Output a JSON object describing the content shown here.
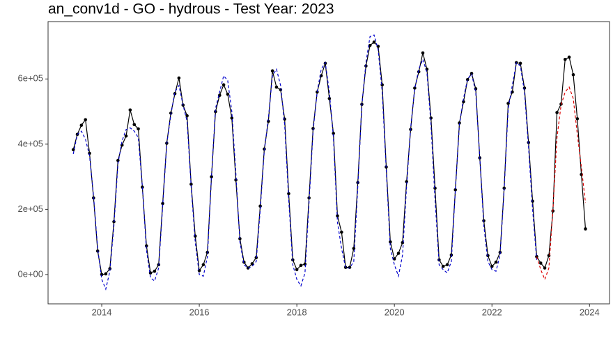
{
  "chart_data": {
    "type": "line",
    "title": "an_conv1d - GO - hydrous - Test Year: 2023",
    "x": [
      2013.417,
      2013.5,
      2013.583,
      2013.667,
      2013.75,
      2013.833,
      2013.917,
      2014,
      2014.083,
      2014.167,
      2014.25,
      2014.333,
      2014.417,
      2014.5,
      2014.583,
      2014.667,
      2014.75,
      2014.833,
      2014.917,
      2015,
      2015.083,
      2015.167,
      2015.25,
      2015.333,
      2015.417,
      2015.5,
      2015.583,
      2015.667,
      2015.75,
      2015.833,
      2015.917,
      2016,
      2016.083,
      2016.167,
      2016.25,
      2016.333,
      2016.417,
      2016.5,
      2016.583,
      2016.667,
      2016.75,
      2016.833,
      2016.917,
      2017,
      2017.083,
      2017.167,
      2017.25,
      2017.333,
      2017.417,
      2017.5,
      2017.583,
      2017.667,
      2017.75,
      2017.833,
      2017.917,
      2018,
      2018.083,
      2018.167,
      2018.25,
      2018.333,
      2018.417,
      2018.5,
      2018.583,
      2018.667,
      2018.75,
      2018.833,
      2018.917,
      2019,
      2019.083,
      2019.167,
      2019.25,
      2019.333,
      2019.417,
      2019.5,
      2019.583,
      2019.667,
      2019.75,
      2019.833,
      2019.917,
      2020,
      2020.083,
      2020.167,
      2020.25,
      2020.333,
      2020.417,
      2020.5,
      2020.583,
      2020.667,
      2020.75,
      2020.833,
      2020.917,
      2021,
      2021.083,
      2021.167,
      2021.25,
      2021.333,
      2021.417,
      2021.5,
      2021.583,
      2021.667,
      2021.75,
      2021.833,
      2021.917,
      2022,
      2022.083,
      2022.167,
      2022.25,
      2022.333,
      2022.417,
      2022.5,
      2022.583,
      2022.667,
      2022.75,
      2022.833,
      2022.917,
      2023,
      2023.083,
      2023.167,
      2023.25,
      2023.333,
      2023.417,
      2023.5,
      2023.583,
      2023.667,
      2023.75,
      2023.833,
      2023.917
    ],
    "series": [
      {
        "color": "#000000",
        "linestyle": "solid",
        "markers": true,
        "values": [
          383000,
          430000,
          458000,
          475000,
          372000,
          235000,
          72000,
          0,
          2000,
          18000,
          162000,
          350000,
          397000,
          425000,
          505000,
          460000,
          447000,
          268000,
          88000,
          5000,
          10000,
          30000,
          218000,
          403000,
          495000,
          555000,
          603000,
          520000,
          487000,
          277000,
          118000,
          12000,
          30000,
          68000,
          300000,
          500000,
          550000,
          582000,
          553000,
          480000,
          290000,
          110000,
          38000,
          20000,
          33000,
          52000,
          210000,
          385000,
          470000,
          625000,
          575000,
          567000,
          477000,
          248000,
          45000,
          15000,
          28000,
          32000,
          235000,
          448000,
          560000,
          610000,
          648000,
          540000,
          433000,
          180000,
          130000,
          22000,
          22000,
          80000,
          282000,
          522000,
          640000,
          703000,
          713000,
          700000,
          582000,
          330000,
          100000,
          48000,
          65000,
          98000,
          285000,
          445000,
          572000,
          622000,
          680000,
          630000,
          480000,
          265000,
          45000,
          25000,
          30000,
          60000,
          260000,
          465000,
          530000,
          598000,
          617000,
          570000,
          358000,
          165000,
          58000,
          25000,
          38000,
          68000,
          265000,
          525000,
          560000,
          650000,
          648000,
          572000,
          405000,
          225000,
          55000,
          35000,
          20000,
          58000,
          195000,
          497000,
          523000,
          660000,
          667000,
          613000,
          478000,
          307000,
          140000
        ]
      },
      {
        "color": "#0000cc",
        "linestyle": "dashed",
        "markers": false,
        "values": [
          370000,
          430000,
          440000,
          415000,
          365000,
          240000,
          80000,
          -15000,
          -45000,
          10000,
          150000,
          340000,
          410000,
          445000,
          450000,
          440000,
          420000,
          270000,
          75000,
          -10000,
          -20000,
          20000,
          210000,
          400000,
          490000,
          560000,
          580000,
          520000,
          470000,
          270000,
          100000,
          0,
          -5000,
          55000,
          300000,
          510000,
          560000,
          610000,
          595000,
          500000,
          310000,
          100000,
          30000,
          20000,
          25000,
          40000,
          200000,
          380000,
          480000,
          610000,
          630000,
          580000,
          460000,
          230000,
          30000,
          -15000,
          -35000,
          5000,
          220000,
          440000,
          560000,
          630000,
          650000,
          560000,
          420000,
          160000,
          80000,
          20000,
          20000,
          40000,
          270000,
          520000,
          650000,
          730000,
          735000,
          690000,
          560000,
          320000,
          80000,
          30000,
          -5000,
          60000,
          270000,
          450000,
          570000,
          630000,
          660000,
          620000,
          460000,
          230000,
          30000,
          15000,
          5000,
          40000,
          260000,
          460000,
          540000,
          600000,
          615000,
          560000,
          360000,
          150000,
          40000,
          15000,
          10000,
          60000,
          260000,
          510000,
          580000,
          650000,
          640000,
          560000,
          390000,
          200000,
          45000,
          null,
          null,
          null,
          null,
          null,
          null,
          null,
          null,
          null,
          null,
          null,
          null
        ]
      },
      {
        "color": "#dd0000",
        "linestyle": "dashed",
        "markers": false,
        "values": [
          null,
          null,
          null,
          null,
          null,
          null,
          null,
          null,
          null,
          null,
          null,
          null,
          null,
          null,
          null,
          null,
          null,
          null,
          null,
          null,
          null,
          null,
          null,
          null,
          null,
          null,
          null,
          null,
          null,
          null,
          null,
          null,
          null,
          null,
          null,
          null,
          null,
          null,
          null,
          null,
          null,
          null,
          null,
          null,
          null,
          null,
          null,
          null,
          null,
          null,
          null,
          null,
          null,
          null,
          null,
          null,
          null,
          null,
          null,
          null,
          null,
          null,
          null,
          null,
          null,
          null,
          null,
          null,
          null,
          null,
          null,
          null,
          null,
          null,
          null,
          null,
          null,
          null,
          null,
          null,
          null,
          null,
          null,
          null,
          null,
          null,
          null,
          null,
          null,
          null,
          null,
          null,
          null,
          null,
          null,
          null,
          null,
          null,
          null,
          null,
          null,
          null,
          null,
          null,
          null,
          null,
          null,
          null,
          null,
          null,
          null,
          null,
          null,
          null,
          55000,
          15000,
          -15000,
          20000,
          200000,
          420000,
          520000,
          560000,
          575000,
          540000,
          430000,
          330000,
          220000
        ]
      }
    ],
    "xlim": [
      2012.9,
      2024.41
    ],
    "xticks": [
      2014,
      2016,
      2018,
      2020,
      2022,
      2024
    ],
    "ylim": [
      -90000,
      776000
    ],
    "yticks": [
      {
        "value": 0,
        "label": "0e+00"
      },
      {
        "value": 200000,
        "label": "2e+05"
      },
      {
        "value": 400000,
        "label": "4e+05"
      },
      {
        "value": 600000,
        "label": "6e+05"
      }
    ],
    "grid": false
  }
}
